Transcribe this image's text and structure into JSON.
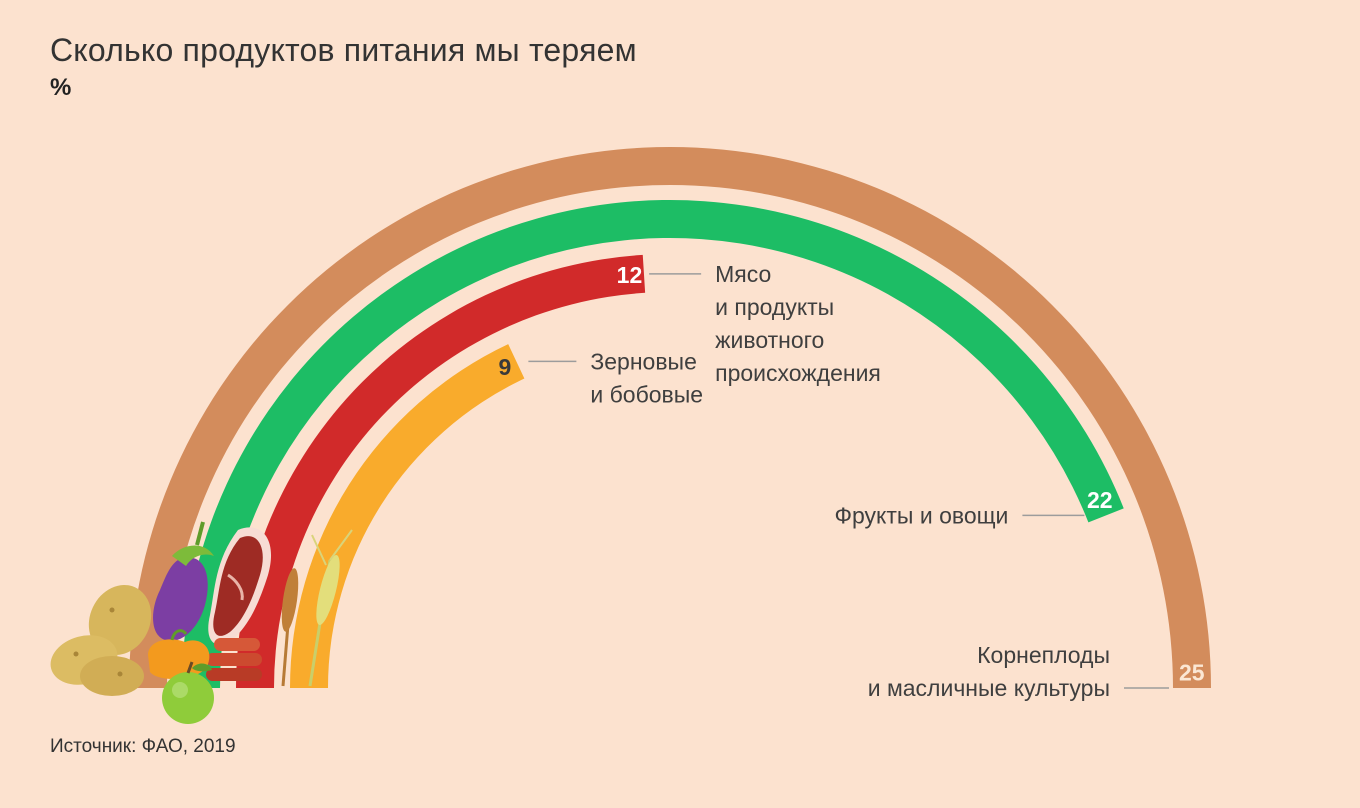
{
  "header": {
    "title": "Сколько продуктов питания мы теряем",
    "unit": "%"
  },
  "footer": {
    "source": "Источник: ФАО, 2019"
  },
  "chart_data": {
    "type": "radial-bar",
    "unit": "%",
    "max_value": 25,
    "series": [
      {
        "name": "Корнеплоды и масличные культуры",
        "label_lines": [
          "Корнеплоды",
          "и масличные культуры"
        ],
        "value": 25,
        "color": "#d38c5c",
        "value_text_color": "#fbe7d4"
      },
      {
        "name": "Фрукты и овощи",
        "label_lines": [
          "Фрукты и овощи"
        ],
        "value": 22,
        "color": "#1dbd65",
        "value_text_color": "#ffffff"
      },
      {
        "name": "Мясо и продукты животного происхождения",
        "label_lines": [
          "Мясо",
          "и продукты",
          "животного",
          "происхождения"
        ],
        "value": 12,
        "color": "#d12a2a",
        "value_text_color": "#ffffff"
      },
      {
        "name": "Зерновые и бобовые",
        "label_lines": [
          "Зерновые",
          "и бобовые"
        ],
        "value": 9,
        "color": "#f9ab2c",
        "value_text_color": "#3a3a3a"
      }
    ]
  },
  "illustrations": {
    "items": [
      "potato-icon",
      "eggplant-icon",
      "pepper-icon",
      "apple-icon",
      "meat-steak-icon",
      "sausages-icon",
      "wheat-icon"
    ]
  }
}
